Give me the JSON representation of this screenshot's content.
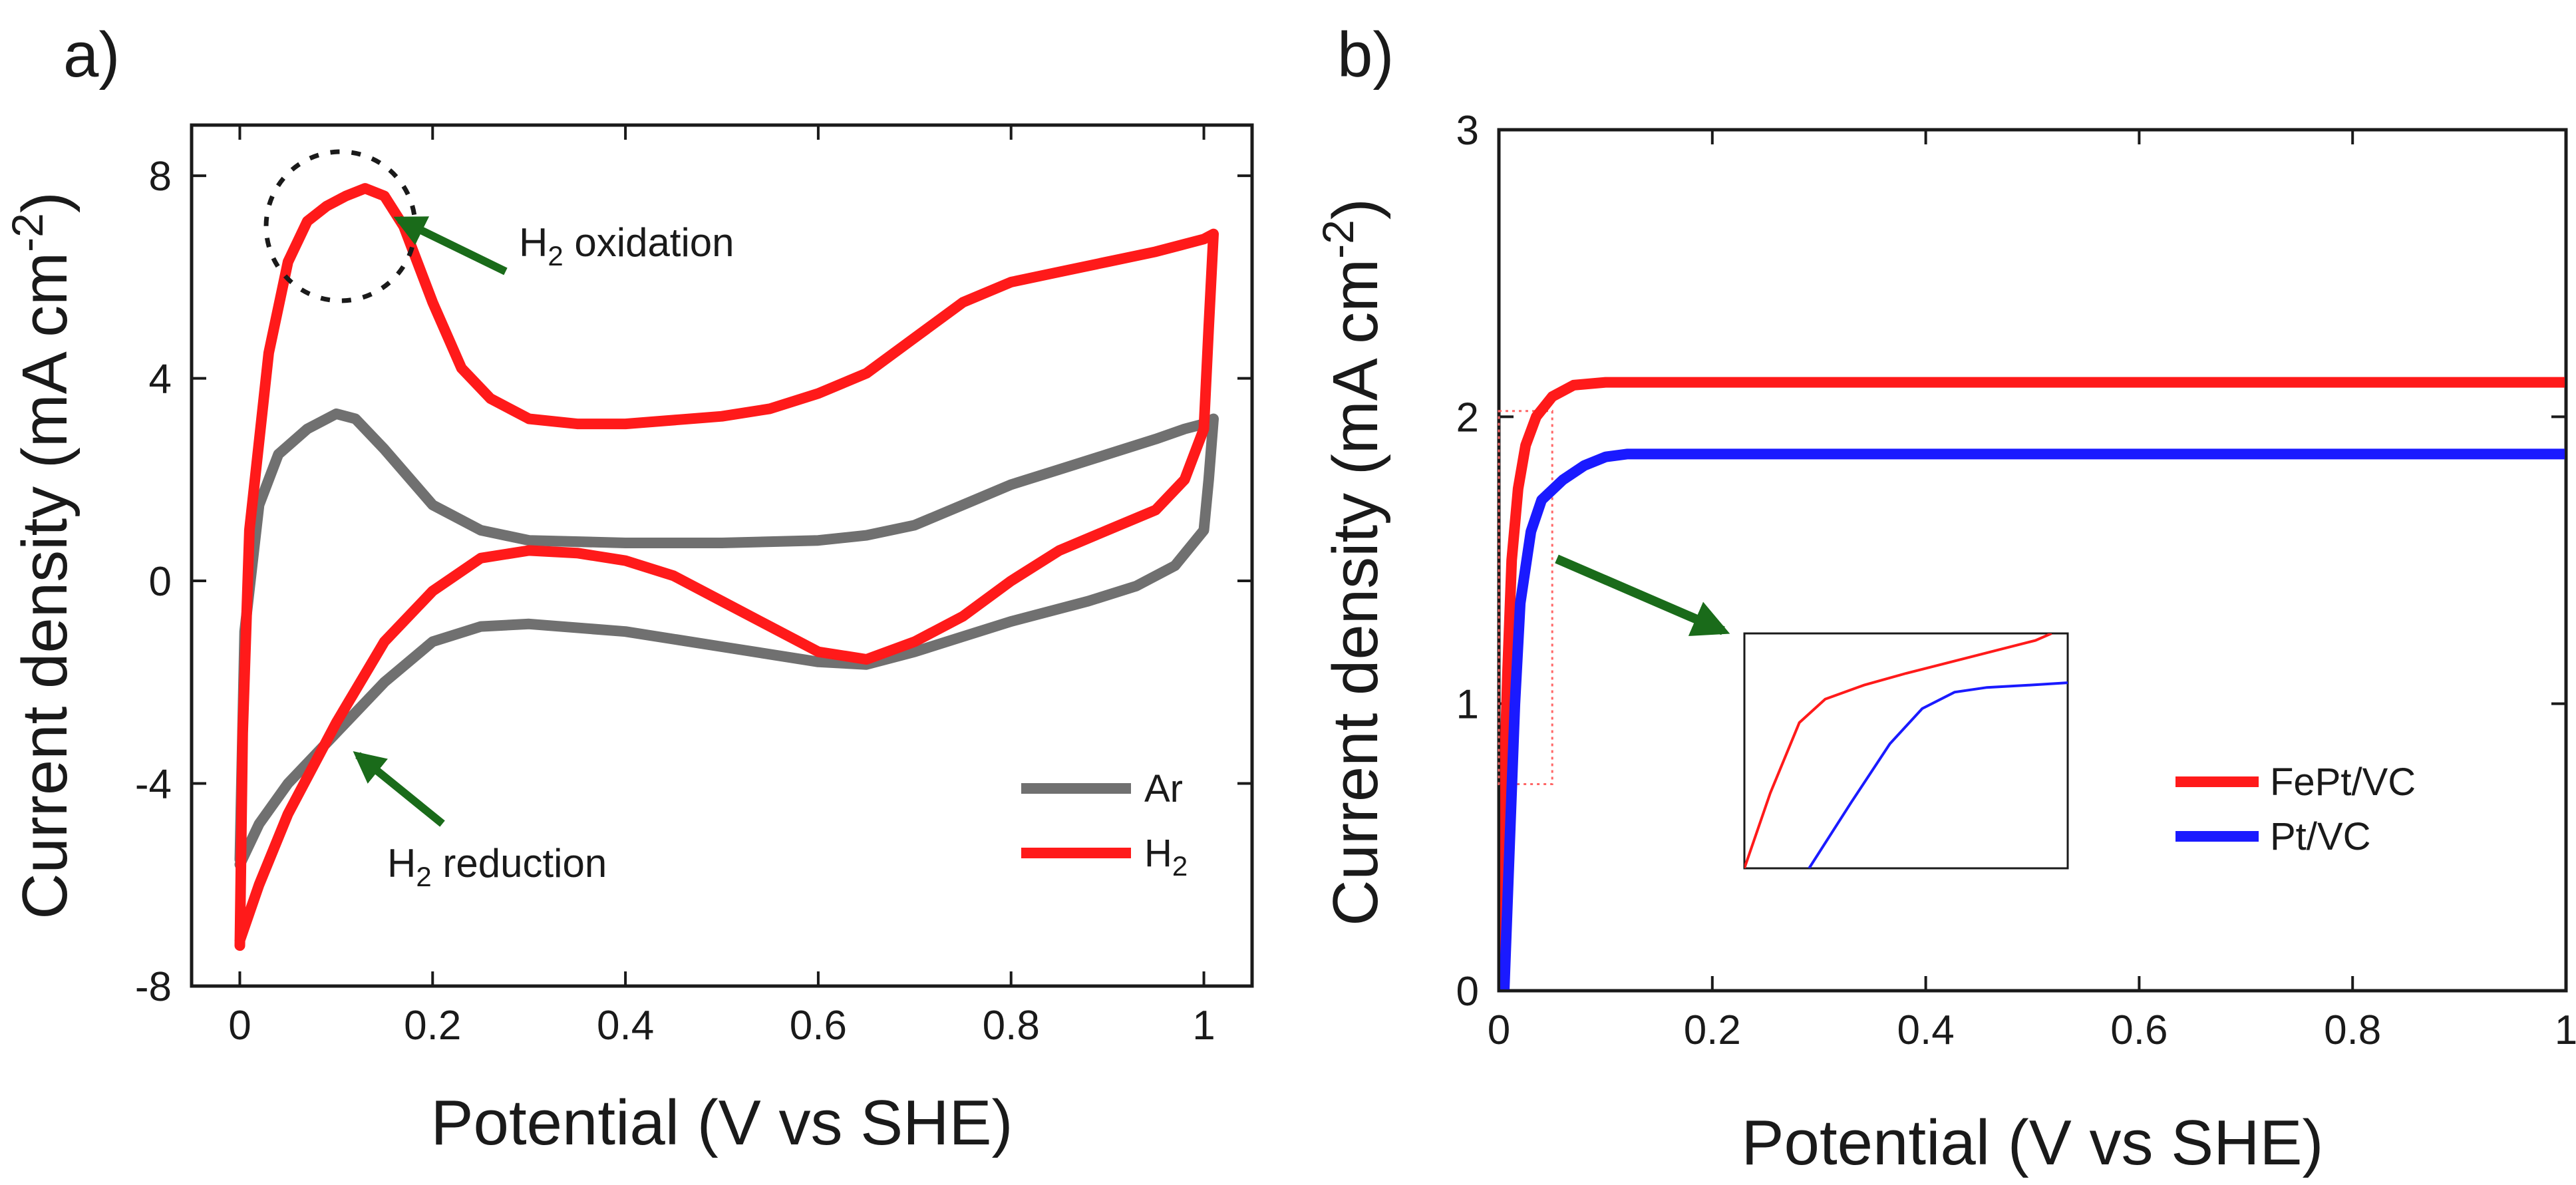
{
  "panel_a": {
    "label": "a)",
    "annotation_oxidation": {
      "prefix": "H",
      "sub": "2",
      "suffix": " oxidation"
    },
    "annotation_reduction": {
      "prefix": "H",
      "sub": "2",
      "suffix": " reduction"
    }
  },
  "panel_b": {
    "label": "b)"
  },
  "colors": {
    "ar": "#707070",
    "h2": "#ff1a1a",
    "fept": "#ff1a1a",
    "pt": "#1a1aff",
    "arrow": "#1a6b1a",
    "axis": "#1a1a1a"
  },
  "chart_data": [
    {
      "type": "line",
      "panel": "a",
      "title": "",
      "xlabel": "Potential (V vs SHE)",
      "ylabel": {
        "main": "Current density (mA cm",
        "sup": "-2",
        "close": ")"
      },
      "xlim": [
        -0.05,
        1.05
      ],
      "ylim": [
        -8,
        9
      ],
      "xticks": [
        0,
        0.2,
        0.4,
        0.6,
        0.8,
        1
      ],
      "xtick_labels": [
        "0",
        "0.2",
        "0.4",
        "0.6",
        "0.8",
        "1"
      ],
      "yticks": [
        -8,
        -4,
        0,
        4,
        8
      ],
      "ytick_labels": [
        "-8",
        "-4",
        "0",
        "4",
        "8"
      ],
      "legend_position": "lower-right",
      "series": [
        {
          "name": "Ar",
          "legend": {
            "text": "Ar",
            "sub": ""
          },
          "color_key": "ar",
          "x": [
            0.0,
            0.005,
            0.02,
            0.04,
            0.07,
            0.1,
            0.12,
            0.15,
            0.2,
            0.25,
            0.3,
            0.4,
            0.5,
            0.6,
            0.65,
            0.7,
            0.75,
            0.8,
            0.85,
            0.9,
            0.95,
            0.98,
            1.0,
            1.005,
            1.01,
            1.005,
            1.0,
            0.97,
            0.93,
            0.88,
            0.8,
            0.75,
            0.7,
            0.65,
            0.6,
            0.5,
            0.4,
            0.3,
            0.25,
            0.2,
            0.15,
            0.1,
            0.05,
            0.02,
            0.0
          ],
          "y": [
            -5.5,
            -1.0,
            1.5,
            2.5,
            3.0,
            3.3,
            3.2,
            2.6,
            1.5,
            1.0,
            0.8,
            0.75,
            0.75,
            0.8,
            0.9,
            1.1,
            1.5,
            1.9,
            2.2,
            2.5,
            2.8,
            3.0,
            3.1,
            3.15,
            3.2,
            2.0,
            1.0,
            0.3,
            -0.1,
            -0.4,
            -0.8,
            -1.1,
            -1.4,
            -1.65,
            -1.6,
            -1.3,
            -1.0,
            -0.85,
            -0.9,
            -1.2,
            -2.0,
            -3.0,
            -4.0,
            -4.8,
            -5.6
          ]
        },
        {
          "name": "H2",
          "legend": {
            "text": "H",
            "sub": "2"
          },
          "color_key": "h2",
          "x": [
            0.0,
            0.003,
            0.01,
            0.03,
            0.05,
            0.07,
            0.09,
            0.11,
            0.13,
            0.15,
            0.17,
            0.2,
            0.23,
            0.26,
            0.3,
            0.35,
            0.4,
            0.5,
            0.55,
            0.6,
            0.65,
            0.7,
            0.75,
            0.8,
            0.85,
            0.9,
            0.95,
            0.98,
            1.0,
            1.005,
            1.01,
            1.005,
            1.0,
            0.98,
            0.95,
            0.9,
            0.85,
            0.8,
            0.75,
            0.7,
            0.65,
            0.6,
            0.55,
            0.5,
            0.45,
            0.4,
            0.35,
            0.3,
            0.25,
            0.2,
            0.15,
            0.1,
            0.05,
            0.02,
            0.0
          ],
          "y": [
            -7.2,
            -3.0,
            1.0,
            4.5,
            6.3,
            7.1,
            7.4,
            7.6,
            7.75,
            7.6,
            7.0,
            5.5,
            4.2,
            3.6,
            3.2,
            3.1,
            3.1,
            3.25,
            3.4,
            3.7,
            4.1,
            4.8,
            5.5,
            5.9,
            6.1,
            6.3,
            6.5,
            6.65,
            6.75,
            6.8,
            6.85,
            5.0,
            3.0,
            2.0,
            1.4,
            1.0,
            0.6,
            0.0,
            -0.7,
            -1.2,
            -1.55,
            -1.4,
            -0.9,
            -0.4,
            0.1,
            0.4,
            0.55,
            0.6,
            0.45,
            -0.2,
            -1.2,
            -2.8,
            -4.6,
            -6.0,
            -7.1
          ]
        }
      ],
      "annotations": [
        "H2 oxidation",
        "H2 reduction"
      ]
    },
    {
      "type": "line",
      "panel": "b",
      "title": "",
      "xlabel": "Potential (V vs SHE)",
      "ylabel": {
        "main": "Current density (mA cm",
        "sup": "-2",
        "close": ")"
      },
      "xlim": [
        0,
        1
      ],
      "ylim": [
        0,
        3
      ],
      "xticks": [
        0,
        0.2,
        0.4,
        0.6,
        0.8,
        1
      ],
      "xtick_labels": [
        "0",
        "0.2",
        "0.4",
        "0.6",
        "0.8",
        "1"
      ],
      "yticks": [
        0,
        1,
        2,
        3
      ],
      "ytick_labels": [
        "0",
        "1",
        "2",
        "3"
      ],
      "legend_position": "right",
      "series": [
        {
          "name": "FePt/VC",
          "legend": {
            "text": "FePt/VC",
            "sub": ""
          },
          "color_key": "fept",
          "x": [
            0.0,
            0.004,
            0.008,
            0.012,
            0.018,
            0.025,
            0.035,
            0.05,
            0.07,
            0.1,
            0.2,
            0.3,
            0.4,
            0.5,
            0.6,
            0.7,
            0.8,
            0.9,
            1.0
          ],
          "y": [
            0.0,
            0.6,
            1.1,
            1.5,
            1.75,
            1.9,
            2.0,
            2.07,
            2.11,
            2.12,
            2.12,
            2.12,
            2.12,
            2.12,
            2.12,
            2.12,
            2.12,
            2.12,
            2.12
          ]
        },
        {
          "name": "Pt/VC",
          "legend": {
            "text": "Pt/VC",
            "sub": ""
          },
          "color_key": "pt",
          "x": [
            0.005,
            0.01,
            0.015,
            0.02,
            0.03,
            0.04,
            0.06,
            0.08,
            0.1,
            0.12,
            0.2,
            0.3,
            0.4,
            0.5,
            0.6,
            0.7,
            0.8,
            0.9,
            1.0
          ],
          "y": [
            0.0,
            0.5,
            1.0,
            1.35,
            1.6,
            1.71,
            1.78,
            1.83,
            1.86,
            1.87,
            1.87,
            1.87,
            1.87,
            1.87,
            1.87,
            1.87,
            1.87,
            1.87,
            1.87
          ]
        }
      ],
      "inset": {
        "source_region": {
          "x": [
            0.0,
            0.05
          ],
          "y": [
            0.72,
            2.02
          ]
        },
        "series": [
          {
            "color_key": "fept",
            "x": [
              0.0,
              0.08,
              0.17,
              0.25,
              0.37,
              0.5,
              0.7,
              0.9,
              0.95
            ],
            "y": [
              0.0,
              0.32,
              0.62,
              0.72,
              0.78,
              0.83,
              0.9,
              0.97,
              1.0
            ]
          },
          {
            "color_key": "pt",
            "x": [
              0.2,
              0.33,
              0.45,
              0.55,
              0.65,
              0.75,
              0.88,
              1.0
            ],
            "y": [
              0.0,
              0.28,
              0.53,
              0.68,
              0.75,
              0.77,
              0.78,
              0.79
            ]
          }
        ]
      }
    }
  ]
}
